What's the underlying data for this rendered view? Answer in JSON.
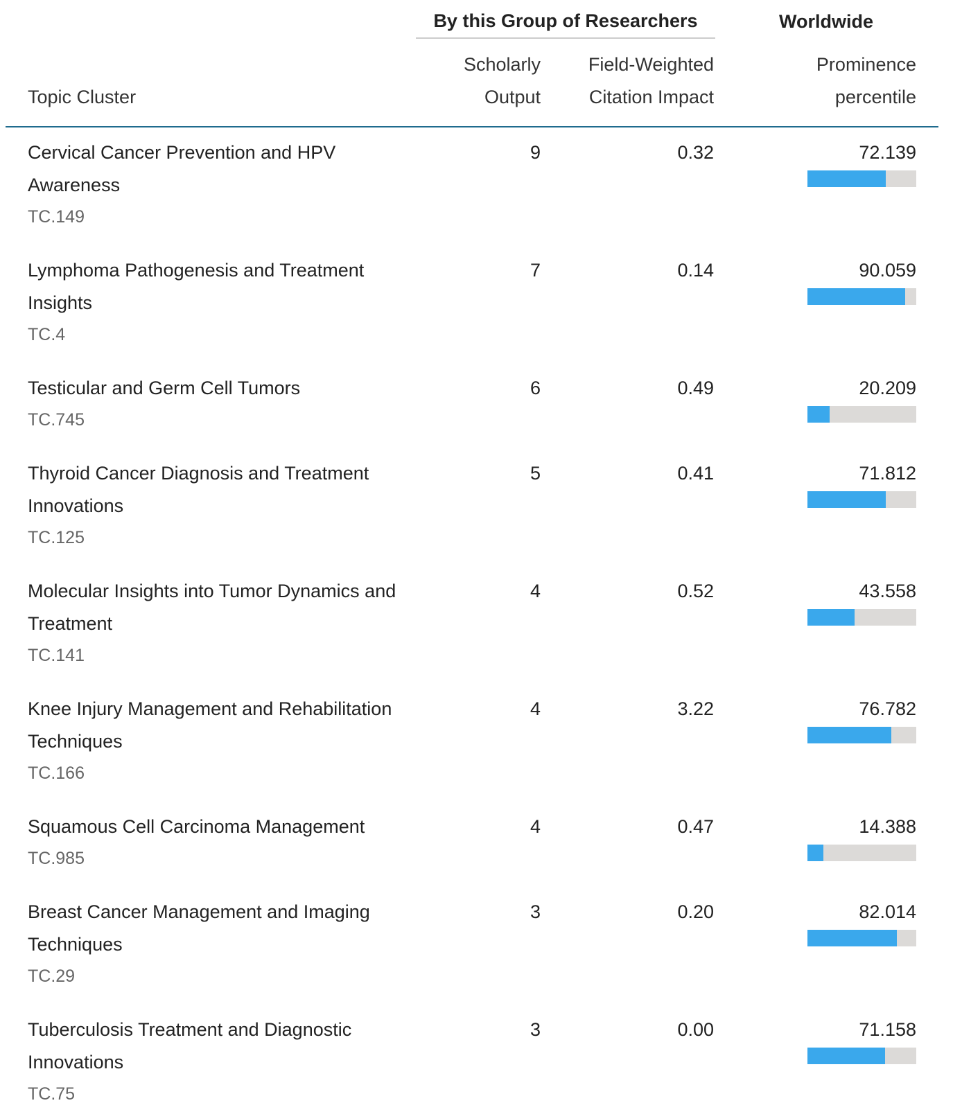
{
  "header": {
    "group_title": "By this Group of Researchers",
    "worldwide_title": "Worldwide"
  },
  "table": {
    "columns": [
      "Topic Cluster",
      "Scholarly Output",
      "Field-Weighted Citation Impact",
      "Prominence percentile"
    ],
    "xlim": [
      0,
      100
    ],
    "rows": [
      {
        "topic": "Cervical Cancer Prevention and HPV Awareness",
        "code": "TC.149",
        "output": 9,
        "fwci": "0.32",
        "percentile": 72.139
      },
      {
        "topic": "Lymphoma Pathogenesis and Treatment Insights",
        "code": "TC.4",
        "output": 7,
        "fwci": "0.14",
        "percentile": 90.059
      },
      {
        "topic": "Testicular and Germ Cell Tumors",
        "code": "TC.745",
        "output": 6,
        "fwci": "0.49",
        "percentile": 20.209
      },
      {
        "topic": "Thyroid Cancer Diagnosis and Treatment Innovations",
        "code": "TC.125",
        "output": 5,
        "fwci": "0.41",
        "percentile": 71.812
      },
      {
        "topic": "Molecular Insights into Tumor Dynamics and Treatment",
        "code": "TC.141",
        "output": 4,
        "fwci": "0.52",
        "percentile": 43.558
      },
      {
        "topic": "Knee Injury Management and Rehabilitation Techniques",
        "code": "TC.166",
        "output": 4,
        "fwci": "3.22",
        "percentile": 76.782
      },
      {
        "topic": "Squamous Cell Carcinoma Management",
        "code": "TC.985",
        "output": 4,
        "fwci": "0.47",
        "percentile": 14.388
      },
      {
        "topic": "Breast Cancer Management and Imaging Techniques",
        "code": "TC.29",
        "output": 3,
        "fwci": "0.20",
        "percentile": 82.014
      },
      {
        "topic": "Tuberculosis Treatment and Diagnostic Innovations",
        "code": "TC.75",
        "output": 3,
        "fwci": "0.00",
        "percentile": 71.158
      }
    ]
  }
}
